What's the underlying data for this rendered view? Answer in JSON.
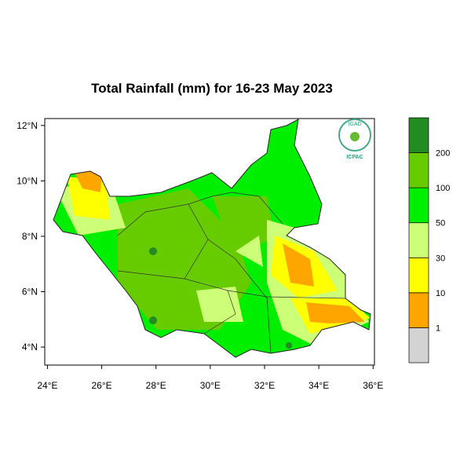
{
  "map": {
    "title": "Total Rainfall (mm) for 16-23 May 2023",
    "xlim": [
      23.9,
      36.05
    ],
    "ylim": [
      3.35,
      12.25
    ],
    "xticks": [
      {
        "value": 24,
        "label": "24°E"
      },
      {
        "value": 26,
        "label": "26°E"
      },
      {
        "value": 28,
        "label": "28°E"
      },
      {
        "value": 30,
        "label": "30°E"
      },
      {
        "value": 32,
        "label": "32°E"
      },
      {
        "value": 34,
        "label": "34°E"
      },
      {
        "value": 36,
        "label": "36°E"
      }
    ],
    "yticks": [
      {
        "value": 4,
        "label": "4°N"
      },
      {
        "value": 6,
        "label": "6°N"
      },
      {
        "value": 8,
        "label": "8°N"
      },
      {
        "value": 10,
        "label": "10°N"
      },
      {
        "value": 12,
        "label": "12°N"
      }
    ],
    "logo": {
      "top": "IGAD",
      "bottom": "ICPAC"
    }
  },
  "legend": {
    "bounds": [
      1,
      10,
      30,
      50,
      100,
      200
    ],
    "colors": [
      "#d3d3d3",
      "#ffa500",
      "#ffff00",
      "#ccff77",
      "#00ee00",
      "#66cc00",
      "#228b22"
    ]
  }
}
